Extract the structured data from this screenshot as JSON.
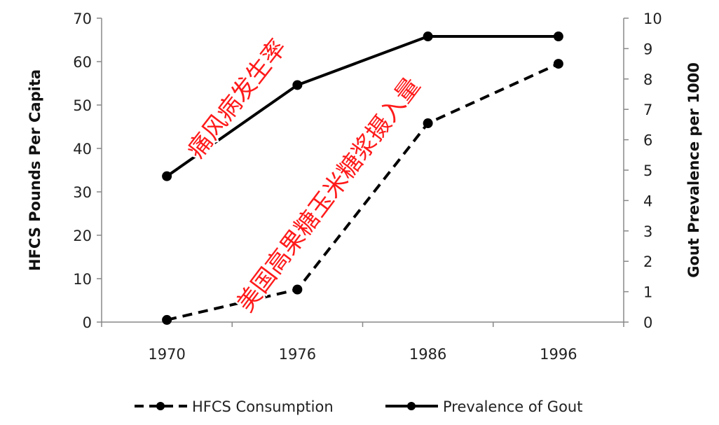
{
  "chart_data": {
    "type": "line",
    "categories": [
      "1970",
      "1976",
      "1986",
      "1996"
    ],
    "series": [
      {
        "name": "HFCS Consumption",
        "axis": "left",
        "line_style": "dashed",
        "color": "#000000",
        "values": [
          0.5,
          7.5,
          45.8,
          59.5
        ]
      },
      {
        "name": "Prevalence of Gout",
        "axis": "right",
        "line_style": "solid",
        "color": "#000000",
        "values": [
          4.8,
          7.8,
          9.4,
          9.4
        ]
      }
    ],
    "ylabel": "HFCS Pounds Per Capita",
    "ylim": [
      0,
      70
    ],
    "yticks": [
      "0",
      "10",
      "20",
      "30",
      "40",
      "50",
      "60",
      "70"
    ],
    "y2label": "Gout Prevalence per 1000",
    "y2lim": [
      0,
      10
    ],
    "y2ticks": [
      "0",
      "1",
      "2",
      "3",
      "4",
      "5",
      "6",
      "7",
      "8",
      "9",
      "10"
    ],
    "grid": false,
    "legend_placement": "bottom",
    "annotations": [
      {
        "text": "痛风病发生率",
        "color": "#ff1a1a",
        "refers_to": "Prevalence of Gout"
      },
      {
        "text": "美国高果糖玉米糖浆摄入量",
        "color": "#ff1a1a",
        "refers_to": "HFCS Consumption"
      }
    ]
  }
}
